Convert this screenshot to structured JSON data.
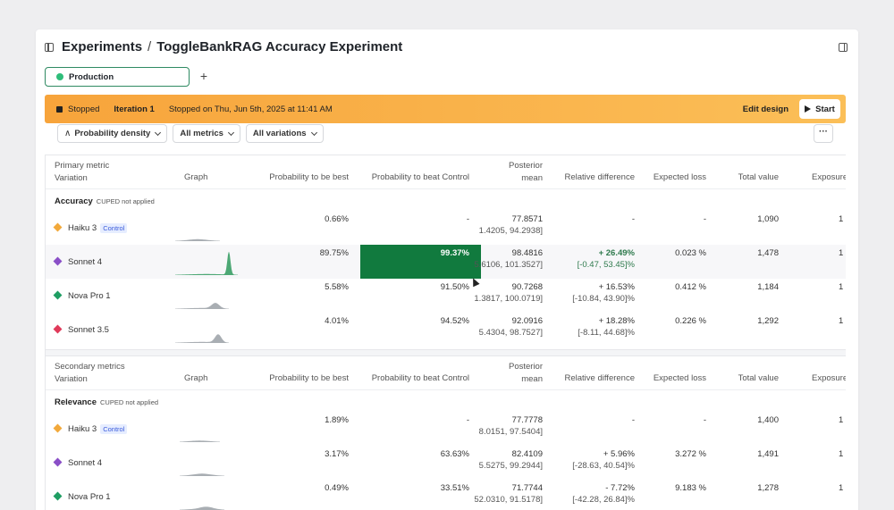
{
  "header": {
    "breadcrumb_root": "Experiments",
    "separator": "/",
    "title": "ToggleBankRAG Accuracy Experiment",
    "env_tab": "Production",
    "add_tab": "+"
  },
  "banner": {
    "status": "Stopped",
    "iteration": "Iteration 1",
    "stopped_on": "Stopped on Thu, Jun 5th, 2025 at 11:41 AM",
    "edit_design": "Edit design",
    "start": "Start"
  },
  "filters": {
    "density": "Probability density",
    "metrics": "All metrics",
    "variations": "All variations",
    "more": "···"
  },
  "columns": {
    "metric_primary": "Primary metric",
    "metric_secondary": "Secondary metrics",
    "variation": "Variation",
    "graph": "Graph",
    "prob_best": "Probability to be best",
    "prob_beat": "Probability to beat Control",
    "posterior_1": "Posterior",
    "posterior_2": "mean",
    "rel_diff": "Relative difference",
    "exp_loss": "Expected loss",
    "total_value": "Total value",
    "exposures": "Exposure"
  },
  "primary": {
    "metric": "Accuracy",
    "cuped": "CUPED not applied",
    "rows": [
      {
        "name": "Haiku 3",
        "control": "Control",
        "color": "#f2a93b",
        "prob_best": "0.66%",
        "prob_beat": "-",
        "mean": "77.8571",
        "ci": "1.4205, 94.2938]",
        "rel": "-",
        "rel_ci": "",
        "loss": "-",
        "total": "1,090",
        "exp": "1"
      },
      {
        "name": "Sonnet 4",
        "control": "",
        "color": "#8a4fc7",
        "prob_best": "89.75%",
        "prob_beat": "99.37%",
        "mean": "98.4816",
        "ci": "5.6106, 101.3527]",
        "rel": "+ 26.49%",
        "rel_ci": "[-0.47, 53.45]%",
        "loss": "0.023 %",
        "total": "1,478",
        "exp": "1"
      },
      {
        "name": "Nova Pro 1",
        "control": "",
        "color": "#1f9e63",
        "prob_best": "5.58%",
        "prob_beat": "91.50%",
        "mean": "90.7268",
        "ci": "1.3817, 100.0719]",
        "rel": "+ 16.53%",
        "rel_ci": "[-10.84, 43.90]%",
        "loss": "0.412 %",
        "total": "1,184",
        "exp": "1"
      },
      {
        "name": "Sonnet 3.5",
        "control": "",
        "color": "#e03a5a",
        "prob_best": "4.01%",
        "prob_beat": "94.52%",
        "mean": "92.0916",
        "ci": "5.4304, 98.7527]",
        "rel": "+ 18.28%",
        "rel_ci": "[-8.11, 44.68]%",
        "loss": "0.226 %",
        "total": "1,292",
        "exp": "1"
      }
    ]
  },
  "secondary": {
    "metric": "Relevance",
    "cuped": "CUPED not applied",
    "rows": [
      {
        "name": "Haiku 3",
        "control": "Control",
        "color": "#f2a93b",
        "prob_best": "1.89%",
        "prob_beat": "-",
        "mean": "77.7778",
        "ci": "8.0151, 97.5404]",
        "rel": "-",
        "rel_ci": "",
        "loss": "-",
        "total": "1,400",
        "exp": "1"
      },
      {
        "name": "Sonnet 4",
        "control": "",
        "color": "#8a4fc7",
        "prob_best": "3.17%",
        "prob_beat": "63.63%",
        "mean": "82.4109",
        "ci": "5.5275, 99.2944]",
        "rel": "+ 5.96%",
        "rel_ci": "[-28.63, 40.54]%",
        "loss": "3.272 %",
        "total": "1,491",
        "exp": "1"
      },
      {
        "name": "Nova Pro 1",
        "control": "",
        "color": "#1f9e63",
        "prob_best": "0.49%",
        "prob_beat": "33.51%",
        "mean": "71.7744",
        "ci": "52.0310, 91.5178]",
        "rel": "- 7.72%",
        "rel_ci": "[-42.28, 26.84]%",
        "loss": "9.183 %",
        "total": "1,278",
        "exp": "1"
      }
    ]
  },
  "colors": {
    "highlight": "#117a3e",
    "banner": "#f7a43b",
    "env_dot": "#2fbd7a"
  }
}
